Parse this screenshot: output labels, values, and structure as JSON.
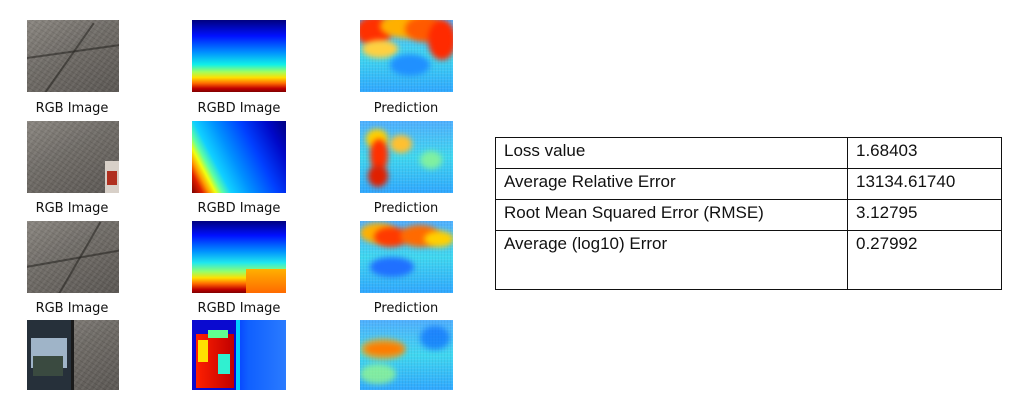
{
  "rows": [
    {
      "rgb_label": "RGB Image",
      "rgbd_label": "RGBD Image",
      "prediction_label": "Prediction"
    },
    {
      "rgb_label": "RGB Image",
      "rgbd_label": "RGBD Image",
      "prediction_label": "Prediction"
    },
    {
      "rgb_label": "RGB Image",
      "rgbd_label": "RGBD Image",
      "prediction_label": "Prediction"
    }
  ],
  "metrics": [
    {
      "name": "Loss value",
      "value": "1.68403"
    },
    {
      "name": "Average Relative Error",
      "value": "13134.61740"
    },
    {
      "name": "Root Mean Squared Error (RMSE)",
      "value": "3.12795"
    },
    {
      "name": "Average (log10) Error",
      "value": "0.27992"
    }
  ],
  "colors": {
    "colormap": "jet",
    "table_border": "#111111",
    "background": "#ffffff"
  }
}
